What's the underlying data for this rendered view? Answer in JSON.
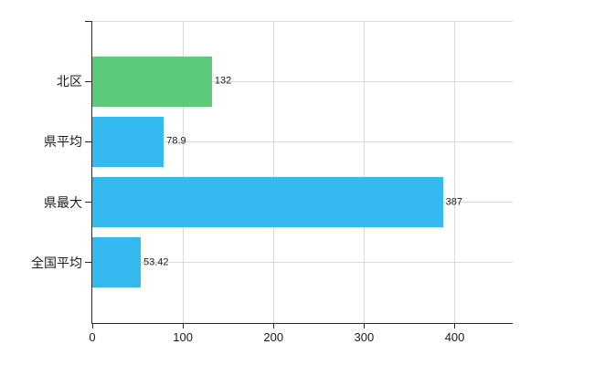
{
  "chart_data": {
    "type": "bar",
    "orientation": "horizontal",
    "title": "",
    "xlabel": "",
    "ylabel": "",
    "categories": [
      "北区",
      "県平均",
      "県最大",
      "全国平均"
    ],
    "values": [
      132,
      78.9,
      387,
      53.42
    ],
    "value_labels": [
      "132",
      "78.9",
      "387",
      "53.42"
    ],
    "bar_colors": [
      "#5dca7b",
      "#34baee",
      "#34baee",
      "#34baee"
    ],
    "x_tick_labels": [
      "0",
      "100",
      "200",
      "300",
      "400"
    ],
    "x_tick_values": [
      0,
      100,
      200,
      300,
      400
    ],
    "xlim": [
      0,
      464
    ],
    "grid": true,
    "legend_position": "none",
    "colors": {
      "bar_highlight": "#5dca7b",
      "bar_default": "#34baee",
      "grid": "#d9d9d9",
      "axis": "#2a2a2a",
      "text": "#1c1c1c",
      "background": "#ffffff"
    }
  }
}
